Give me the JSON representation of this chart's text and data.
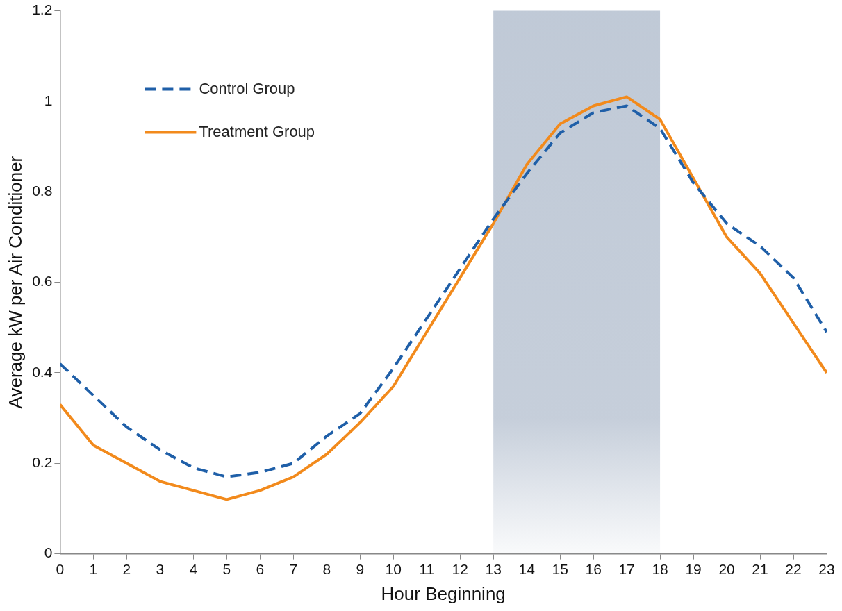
{
  "chart_data": {
    "type": "line",
    "xlabel": "Hour Beginning",
    "ylabel": "Average kW per Air Conditioner",
    "x": [
      0,
      1,
      2,
      3,
      4,
      5,
      6,
      7,
      8,
      9,
      10,
      11,
      12,
      13,
      14,
      15,
      16,
      17,
      18,
      19,
      20,
      21,
      22,
      23
    ],
    "xlim": [
      0,
      23
    ],
    "xticks": [
      0,
      1,
      2,
      3,
      4,
      5,
      6,
      7,
      8,
      9,
      10,
      11,
      12,
      13,
      14,
      15,
      16,
      17,
      18,
      19,
      20,
      21,
      22,
      23
    ],
    "ylim": [
      0,
      1.2
    ],
    "yticks": [
      0,
      0.2,
      0.4,
      0.6,
      0.8,
      1,
      1.2
    ],
    "series": [
      {
        "name": "Control Group",
        "color": "#1f5fa8",
        "line_style": "dashed",
        "values": [
          0.42,
          0.35,
          0.28,
          0.23,
          0.19,
          0.17,
          0.18,
          0.2,
          0.26,
          0.31,
          0.41,
          0.52,
          0.63,
          0.74,
          0.84,
          0.93,
          0.975,
          0.99,
          0.94,
          0.82,
          0.73,
          0.68,
          0.61,
          0.49
        ]
      },
      {
        "name": "Treatment Group",
        "color": "#f28a1c",
        "line_style": "solid",
        "values": [
          0.33,
          0.24,
          0.2,
          0.16,
          0.14,
          0.12,
          0.14,
          0.17,
          0.22,
          0.29,
          0.37,
          0.49,
          0.61,
          0.73,
          0.86,
          0.95,
          0.99,
          1.01,
          0.96,
          0.83,
          0.7,
          0.62,
          0.51,
          0.4
        ]
      }
    ],
    "bands": [
      {
        "axis": "x",
        "from": 13,
        "to": 18,
        "color": "#a9b6c8"
      }
    ],
    "grid": false,
    "legend": "top left",
    "marker": "none"
  }
}
